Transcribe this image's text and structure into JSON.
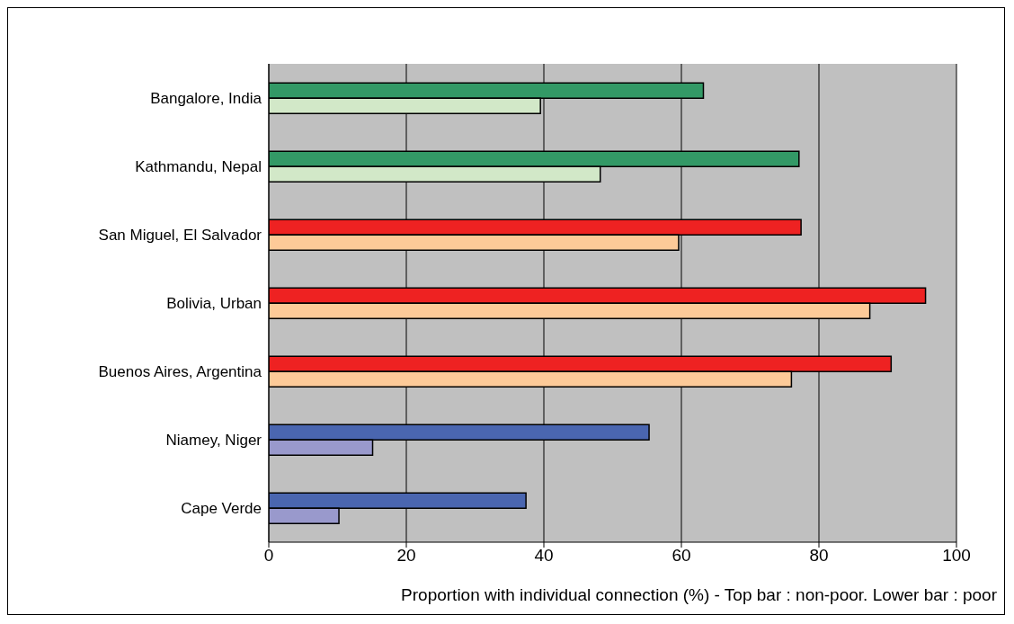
{
  "chart_data": {
    "type": "bar",
    "orientation": "horizontal",
    "xlabel": "Proportion with individual connection (%) - Top bar : non-poor. Lower bar : poor",
    "categories": [
      "Bangalore, India",
      "Kathmandu, Nepal",
      "San Miguel, El Salvador",
      "Bolivia, Urban",
      "Buenos Aires, Argentina",
      "Niamey, Niger",
      "Cape Verde"
    ],
    "series": [
      {
        "values": [
          63.2,
          77.1,
          77.4,
          95.5,
          90.5,
          55.3,
          37.4
        ],
        "colors": [
          "#339966",
          "#339966",
          "#ee2222",
          "#ee2222",
          "#ee2222",
          "#4a66b0",
          "#4a66b0"
        ]
      },
      {
        "values": [
          39.5,
          48.2,
          59.6,
          87.4,
          76.0,
          15.1,
          10.2
        ],
        "colors": [
          "#d2e8c8",
          "#d2e8c8",
          "#fdca98",
          "#fdca98",
          "#fdca98",
          "#9999cc",
          "#9999cc"
        ]
      }
    ],
    "xlim": [
      0,
      100
    ],
    "xticks": [
      0,
      20,
      40,
      60,
      80,
      100
    ],
    "grid": "x",
    "legend": false
  }
}
